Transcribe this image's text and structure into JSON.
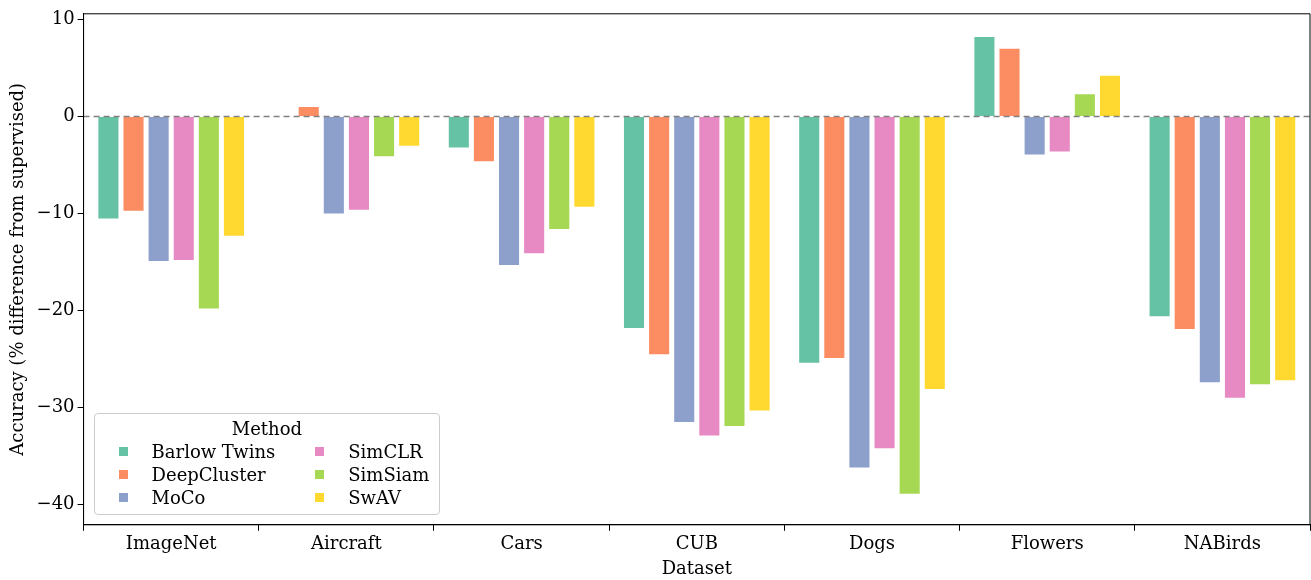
{
  "chart_data": {
    "type": "bar",
    "xlabel": "Dataset",
    "ylabel": "Accuracy (% difference from supervised)",
    "legend_title": "Method",
    "categories": [
      "ImageNet",
      "Aircraft",
      "Cars",
      "CUB",
      "Dogs",
      "Flowers",
      "NABirds"
    ],
    "series": [
      {
        "name": "Barlow Twins",
        "color": "#66c2a5",
        "values": [
          -10.5,
          null,
          -3.2,
          -21.8,
          -25.4,
          8.2,
          -20.6
        ]
      },
      {
        "name": "DeepCluster",
        "color": "#fc8d62",
        "values": [
          -9.7,
          1.0,
          -4.6,
          -24.5,
          -24.9,
          7.0,
          -21.9
        ]
      },
      {
        "name": "MoCo",
        "color": "#8da0cb",
        "values": [
          -14.9,
          -10.0,
          -15.3,
          -31.5,
          -36.2,
          -3.9,
          -27.4
        ]
      },
      {
        "name": "SimCLR",
        "color": "#e78ac3",
        "values": [
          -14.8,
          -9.6,
          -14.1,
          -32.9,
          -34.2,
          -3.6,
          -29.0
        ]
      },
      {
        "name": "SimSiam",
        "color": "#a6d854",
        "values": [
          -19.8,
          -4.1,
          -11.6,
          -31.9,
          -38.9,
          2.3,
          -27.6
        ]
      },
      {
        "name": "SwAV",
        "color": "#ffd92f",
        "values": [
          -12.3,
          -3.0,
          -9.3,
          -30.3,
          -28.1,
          4.2,
          -27.2
        ]
      }
    ],
    "ylim": [
      -42.1,
      10.6
    ],
    "yticks": [
      -40,
      -30,
      -20,
      -10,
      0,
      10
    ],
    "ref_lines": [
      {
        "axis": "y",
        "value": 0,
        "color": "#808080",
        "line_style": "dashed"
      }
    ],
    "grid": false,
    "legend": "bottom left"
  }
}
